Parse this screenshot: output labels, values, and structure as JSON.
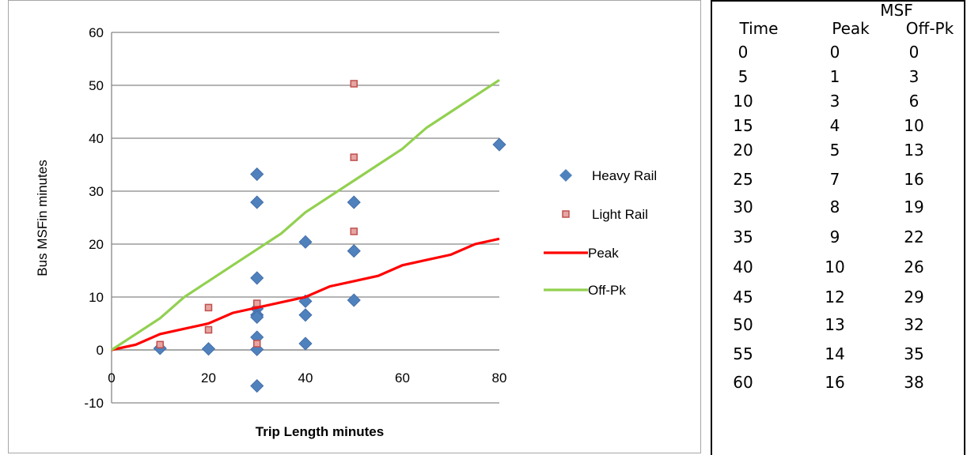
{
  "chart_data": {
    "type": "scatter",
    "title": "",
    "xlabel": "Trip Length minutes",
    "ylabel": "Bus MSFin minutes",
    "xlim": [
      0,
      80
    ],
    "ylim": [
      -10,
      60
    ],
    "x_ticks": [
      "0",
      "20",
      "40",
      "60",
      "80"
    ],
    "y_ticks": [
      "-10",
      "0",
      "10",
      "20",
      "30",
      "40",
      "50",
      "60"
    ],
    "grid": "horizontal",
    "legend_position": "right",
    "series": [
      {
        "name": "Heavy Rail",
        "kind": "scatter",
        "marker": "diamond",
        "color": "#4f81bd",
        "points": [
          [
            10,
            0.3
          ],
          [
            20,
            0.2
          ],
          [
            30,
            33.2
          ],
          [
            30,
            27.9
          ],
          [
            30,
            13.6
          ],
          [
            30,
            7.8
          ],
          [
            30,
            6.6
          ],
          [
            30,
            6.2
          ],
          [
            30,
            2.4
          ],
          [
            30,
            0.1
          ],
          [
            30,
            -6.8
          ],
          [
            40,
            20.4
          ],
          [
            40,
            9.2
          ],
          [
            40,
            6.6
          ],
          [
            40,
            1.2
          ],
          [
            50,
            27.9
          ],
          [
            50,
            18.7
          ],
          [
            50,
            9.4
          ],
          [
            80,
            38.8
          ]
        ]
      },
      {
        "name": "Light Rail",
        "kind": "scatter",
        "marker": "square",
        "color": "#c0504d",
        "points": [
          [
            10,
            1.0
          ],
          [
            20,
            8.0
          ],
          [
            20,
            3.8
          ],
          [
            30,
            8.8
          ],
          [
            30,
            1.2
          ],
          [
            50,
            50.3
          ],
          [
            50,
            36.4
          ],
          [
            50,
            22.4
          ]
        ]
      },
      {
        "name": "Peak",
        "kind": "line",
        "color": "#ff0000",
        "points": [
          [
            0,
            0
          ],
          [
            5,
            1
          ],
          [
            10,
            3
          ],
          [
            15,
            4
          ],
          [
            20,
            5
          ],
          [
            25,
            7
          ],
          [
            30,
            8
          ],
          [
            35,
            9
          ],
          [
            40,
            10
          ],
          [
            45,
            12
          ],
          [
            50,
            13
          ],
          [
            55,
            14
          ],
          [
            60,
            16
          ],
          [
            65,
            17
          ],
          [
            70,
            18
          ],
          [
            75,
            20
          ],
          [
            80,
            21
          ]
        ]
      },
      {
        "name": "Off-Pk",
        "kind": "line",
        "color": "#92d050",
        "points": [
          [
            0,
            0
          ],
          [
            5,
            3
          ],
          [
            10,
            6
          ],
          [
            15,
            10
          ],
          [
            20,
            13
          ],
          [
            25,
            16
          ],
          [
            30,
            19
          ],
          [
            35,
            22
          ],
          [
            40,
            26
          ],
          [
            45,
            29
          ],
          [
            50,
            32
          ],
          [
            55,
            35
          ],
          [
            60,
            38
          ],
          [
            65,
            42
          ],
          [
            70,
            45
          ],
          [
            75,
            48
          ],
          [
            80,
            51
          ]
        ]
      }
    ]
  },
  "table": {
    "group_header": "MSF",
    "columns": [
      "Time",
      "Peak",
      "Off-Pk"
    ],
    "rows": [
      [
        "0",
        "0",
        "0"
      ],
      [
        "5",
        "1",
        "3"
      ],
      [
        "10",
        "3",
        "6"
      ],
      [
        "15",
        "4",
        "10"
      ],
      [
        "20",
        "5",
        "13"
      ],
      [
        "25",
        "7",
        "16"
      ],
      [
        "30",
        "8",
        "19"
      ],
      [
        "35",
        "9",
        "22"
      ],
      [
        "40",
        "10",
        "26"
      ],
      [
        "45",
        "12",
        "29"
      ],
      [
        "50",
        "13",
        "32"
      ],
      [
        "55",
        "14",
        "35"
      ],
      [
        "60",
        "16",
        "38"
      ]
    ]
  }
}
